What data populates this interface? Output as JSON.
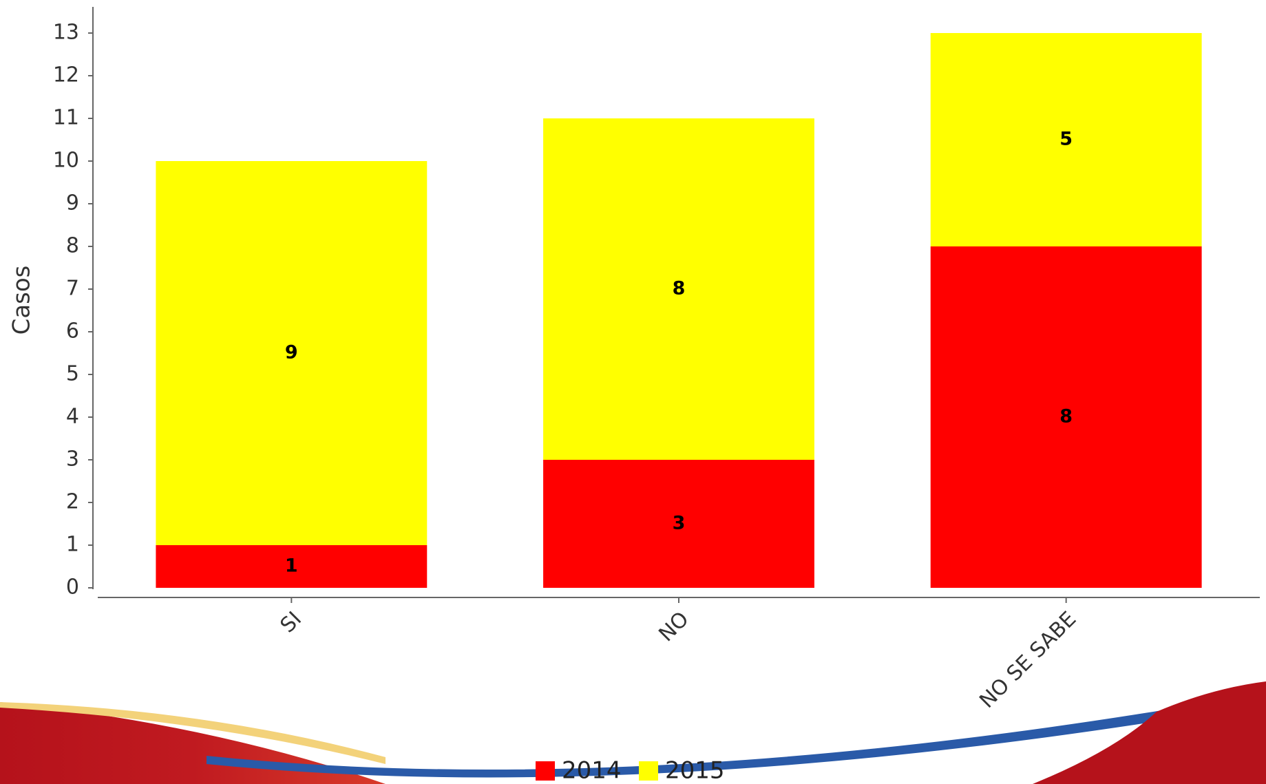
{
  "chart_data": {
    "type": "stacked-bar",
    "y_label": "Casos",
    "categories": [
      "SI",
      "NO",
      "NO SE SABE"
    ],
    "series": [
      {
        "name": "2014",
        "color": "#ff0000",
        "values": [
          1,
          3,
          8
        ]
      },
      {
        "name": "2015",
        "color": "#ffff00",
        "values": [
          9,
          8,
          5
        ]
      }
    ],
    "ylim": [
      0,
      13
    ],
    "yticks": [
      0,
      1,
      2,
      3,
      4,
      5,
      6,
      7,
      8,
      9,
      10,
      11,
      12,
      13
    ],
    "grid": false,
    "legend": "bottom"
  }
}
